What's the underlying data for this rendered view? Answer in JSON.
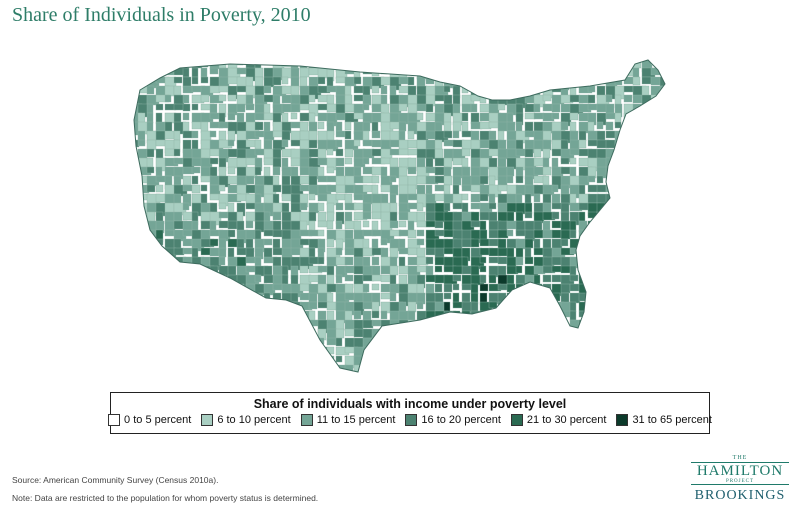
{
  "title": "Share of Individuals in Poverty, 2010",
  "legend": {
    "title": "Share of individuals with income under poverty level",
    "items": [
      {
        "label": "0 to 5 percent",
        "color": "#ffffff"
      },
      {
        "label": "6 to 10 percent",
        "color": "#a9cfc2"
      },
      {
        "label": "11 to 15 percent",
        "color": "#74a596"
      },
      {
        "label": "16 to 20 percent",
        "color": "#4c8271"
      },
      {
        "label": "21 to 30 percent",
        "color": "#2a6a52"
      },
      {
        "label": "31 to 65 percent",
        "color": "#0c3a2b"
      }
    ]
  },
  "source": "Source: American Community Survey (Census 2010a).",
  "note": "Note: Data are restricted to the population for whom poverty status is determined.",
  "logo": {
    "the": "THE",
    "name": "HAMILTON",
    "project": "PROJECT",
    "org": "BROOKINGS"
  }
}
